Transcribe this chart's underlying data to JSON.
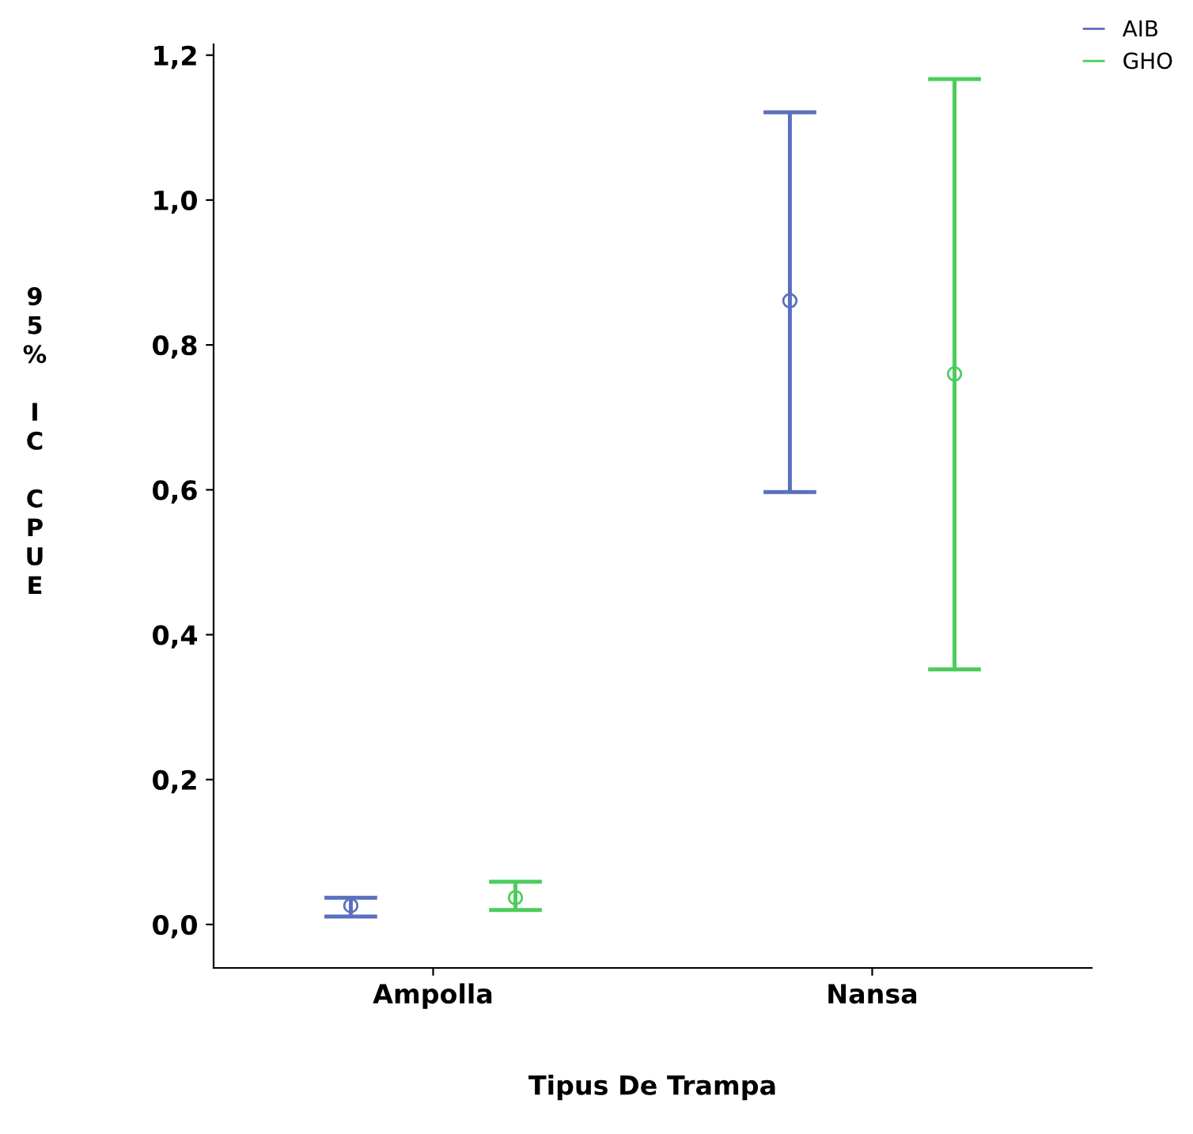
{
  "chart_data": {
    "type": "scatter",
    "xlabel": "Tipus De Trampa",
    "ylabel": "95% IC CPUE",
    "categories": [
      "Ampolla",
      "Nansa"
    ],
    "series": [
      {
        "name": "AIB",
        "color": "#5b6fbf",
        "values": [
          0.026,
          0.861
        ],
        "errors": [
          [
            0.011,
            0.037
          ],
          [
            0.597,
            1.121
          ]
        ]
      },
      {
        "name": "GHO",
        "color": "#4ccc5c",
        "values": [
          0.037,
          0.76
        ],
        "errors": [
          [
            0.02,
            0.059
          ],
          [
            0.352,
            1.167
          ]
        ]
      }
    ],
    "ylim": [
      -0.06,
      1.215
    ],
    "yticks": [
      {
        "value": 0,
        "label": "0,0"
      },
      {
        "value": 0.2,
        "label": "0,2"
      },
      {
        "value": 0.4,
        "label": "0,4"
      },
      {
        "value": 0.6,
        "label": "0,6"
      },
      {
        "value": 0.8,
        "label": "0,8"
      },
      {
        "value": 1.0,
        "label": "1,0"
      },
      {
        "value": 1.2,
        "label": "1,2"
      }
    ],
    "marker": "circle",
    "legend": "top right",
    "grid": false
  }
}
